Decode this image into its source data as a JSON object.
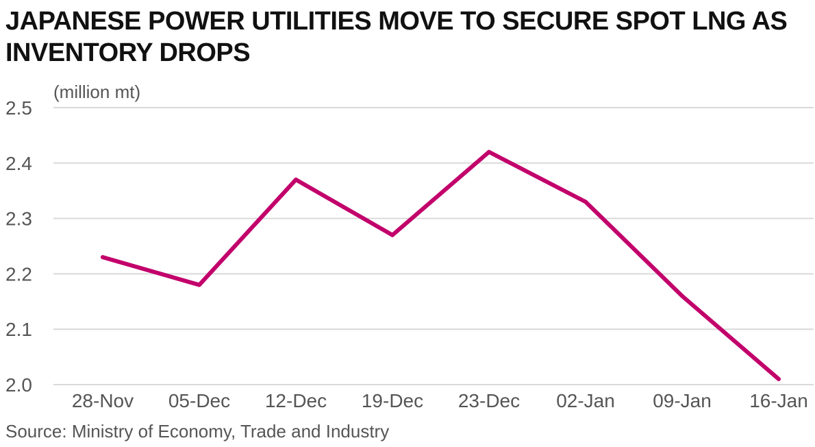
{
  "title": "JAPANESE POWER UTILITIES MOVE TO SECURE SPOT LNG AS INVENTORY DROPS",
  "source": "Source: Ministry of Economy, Trade and Industry",
  "colors": {
    "line": "#C2006B",
    "grid": "#d9d9d9",
    "text": "#555555"
  },
  "chart_data": {
    "type": "line",
    "title": "JAPANESE POWER UTILITIES MOVE TO SECURE SPOT LNG AS INVENTORY DROPS",
    "unit_label": "(million mt)",
    "xlabel": "",
    "ylabel": "",
    "categories": [
      "28-Nov",
      "05-Dec",
      "12-Dec",
      "19-Dec",
      "23-Dec",
      "02-Jan",
      "09-Jan",
      "16-Jan"
    ],
    "values": [
      2.23,
      2.18,
      2.37,
      2.27,
      2.42,
      2.33,
      2.16,
      2.01
    ],
    "ylim": [
      2.0,
      2.5
    ],
    "yticks": [
      "2.0",
      "2.1",
      "2.2",
      "2.3",
      "2.4",
      "2.5"
    ],
    "grid": true,
    "legend": "none"
  }
}
